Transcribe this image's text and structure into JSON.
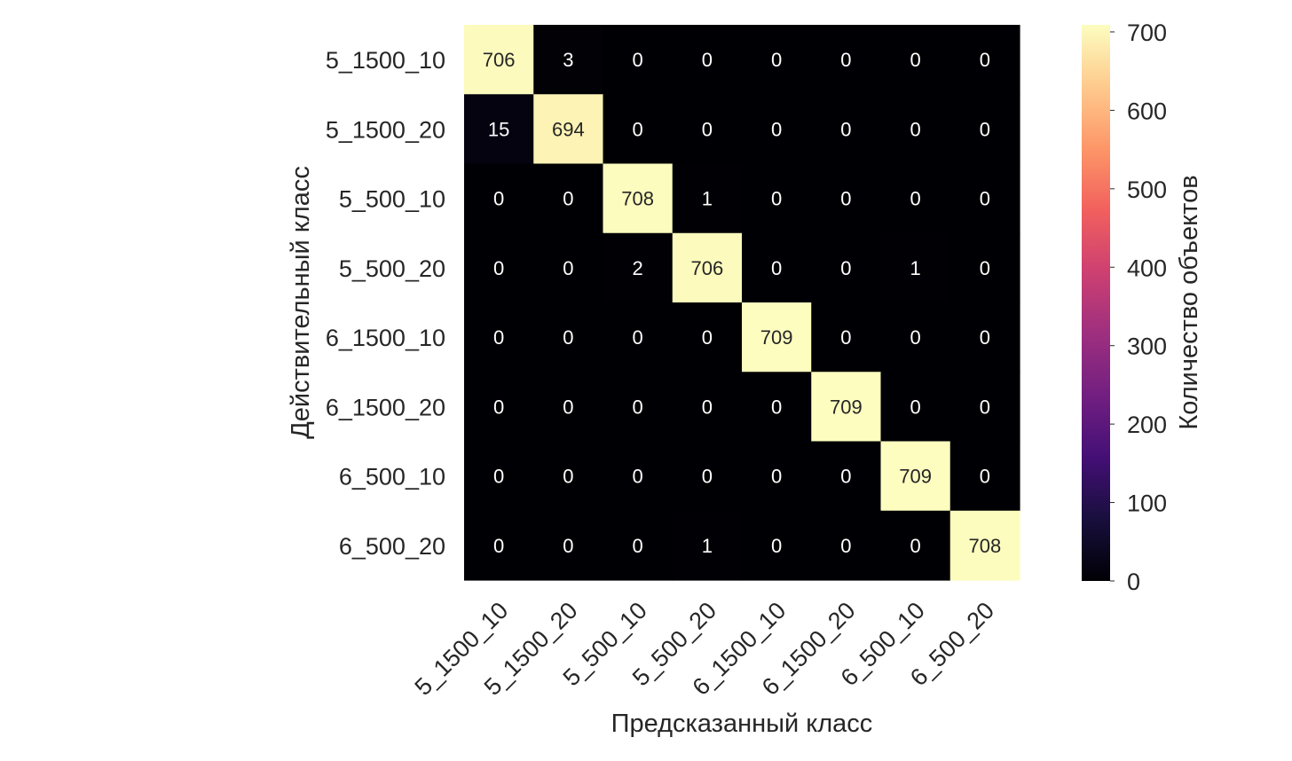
{
  "chart_data": {
    "type": "heatmap",
    "title": "",
    "xlabel": "Предсказанный класс",
    "ylabel": "Действительный класс",
    "x_categories": [
      "5_1500_10",
      "5_1500_20",
      "5_500_10",
      "5_500_20",
      "6_1500_10",
      "6_1500_20",
      "6_500_10",
      "6_500_20"
    ],
    "y_categories": [
      "5_1500_10",
      "5_1500_20",
      "5_500_10",
      "5_500_20",
      "6_1500_10",
      "6_1500_20",
      "6_500_10",
      "6_500_20"
    ],
    "values": [
      [
        706,
        3,
        0,
        0,
        0,
        0,
        0,
        0
      ],
      [
        15,
        694,
        0,
        0,
        0,
        0,
        0,
        0
      ],
      [
        0,
        0,
        708,
        1,
        0,
        0,
        0,
        0
      ],
      [
        0,
        0,
        2,
        706,
        0,
        0,
        1,
        0
      ],
      [
        0,
        0,
        0,
        0,
        709,
        0,
        0,
        0
      ],
      [
        0,
        0,
        0,
        0,
        0,
        709,
        0,
        0
      ],
      [
        0,
        0,
        0,
        0,
        0,
        0,
        709,
        0
      ],
      [
        0,
        0,
        0,
        1,
        0,
        0,
        0,
        708
      ]
    ],
    "colorbar": {
      "label": "Количество объектов",
      "range": [
        0,
        709
      ],
      "ticks": [
        0,
        100,
        200,
        300,
        400,
        500,
        600,
        700
      ],
      "colormap": "magma",
      "colormap_stops": [
        "#000004",
        "#180f3d",
        "#440f76",
        "#721f81",
        "#9e2f7f",
        "#cd4071",
        "#f1605d",
        "#fd9668",
        "#feca8d",
        "#fcfdbf"
      ]
    },
    "annotation_colors": {
      "on_dark": "#ffffff",
      "on_light": "#262626"
    },
    "x_tick_rotation_deg": -45,
    "grid": false,
    "legend": "none"
  }
}
